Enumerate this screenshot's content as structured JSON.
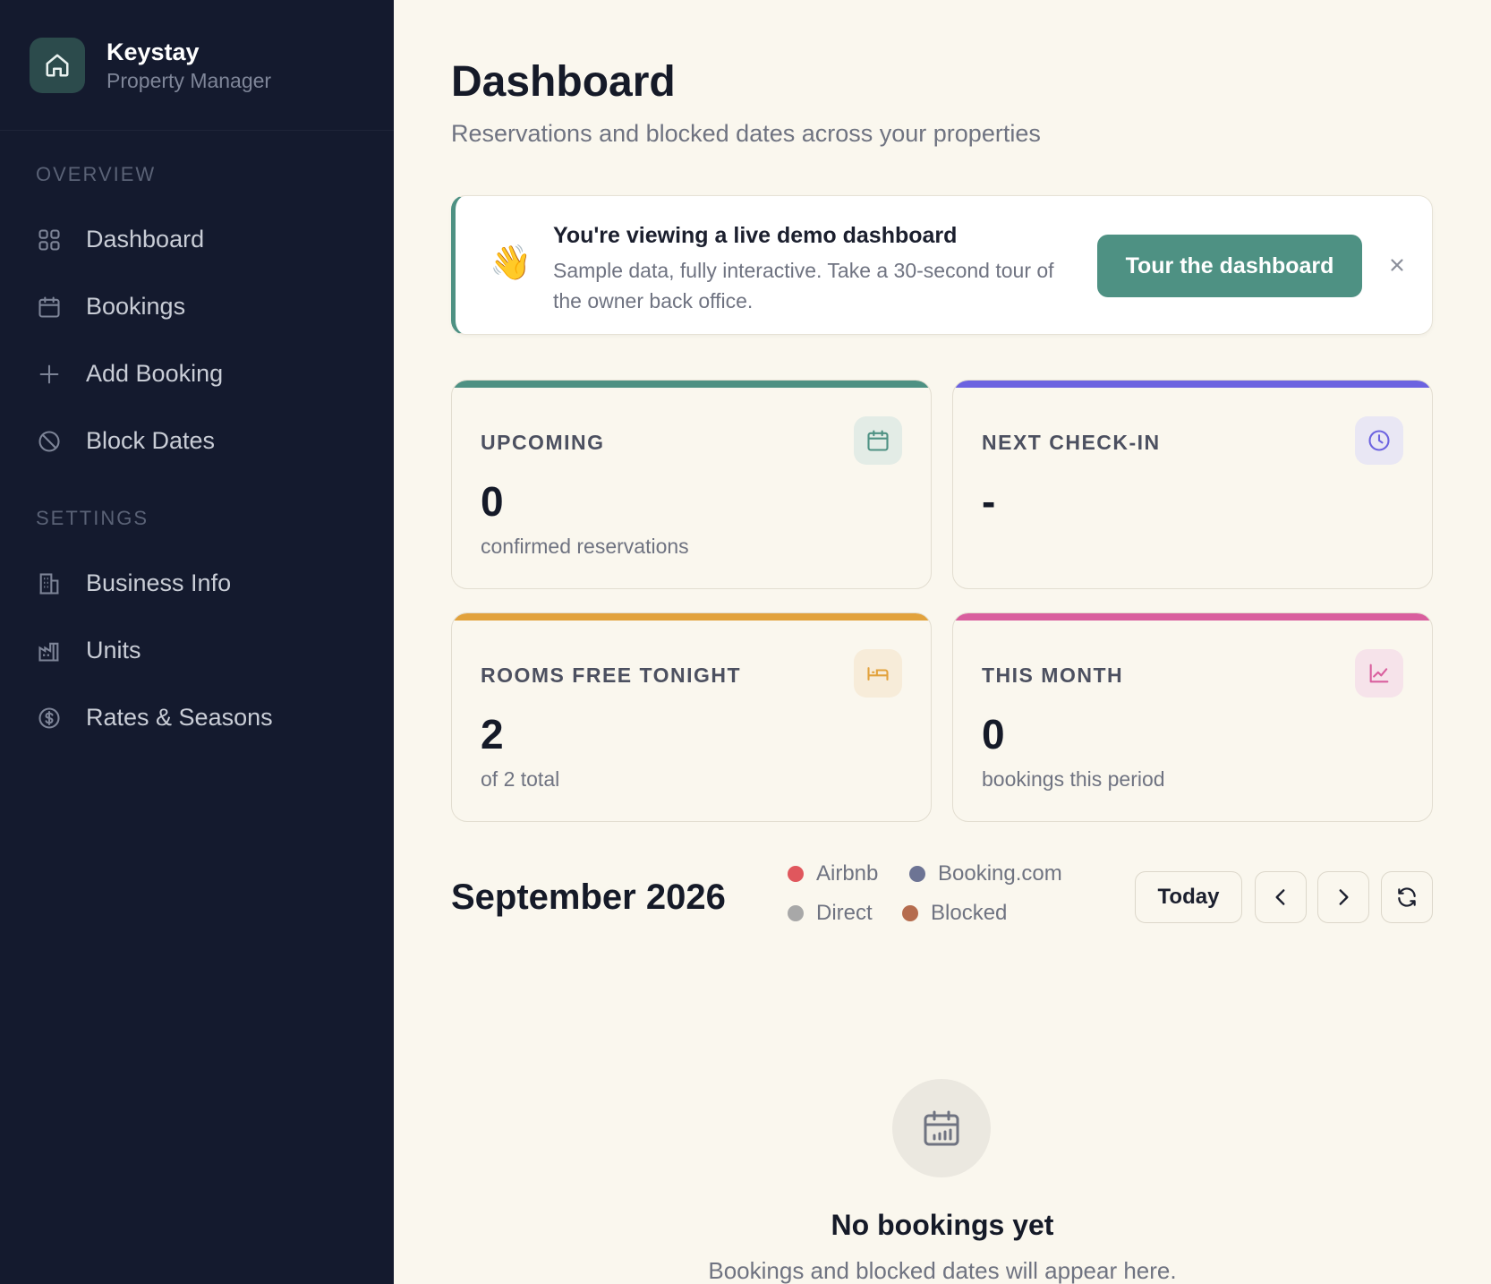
{
  "brand": {
    "name": "Keystay",
    "subtitle": "Property Manager",
    "logo_icon": "home-icon"
  },
  "sidebar": {
    "sections": [
      {
        "label": "OVERVIEW",
        "items": [
          {
            "label": "Dashboard",
            "icon": "grid-icon"
          },
          {
            "label": "Bookings",
            "icon": "calendar-icon"
          },
          {
            "label": "Add Booking",
            "icon": "plus-icon"
          },
          {
            "label": "Block Dates",
            "icon": "ban-icon"
          }
        ]
      },
      {
        "label": "SETTINGS",
        "items": [
          {
            "label": "Business Info",
            "icon": "building-icon"
          },
          {
            "label": "Units",
            "icon": "factory-icon"
          },
          {
            "label": "Rates & Seasons",
            "icon": "dollar-circle-icon"
          }
        ]
      }
    ]
  },
  "header": {
    "title": "Dashboard",
    "subtitle": "Reservations and blocked dates across your properties"
  },
  "banner": {
    "emoji": "👋",
    "title": "You're viewing a live demo dashboard",
    "body": "Sample data, fully interactive. Take a 30-second tour of the owner back office.",
    "button_label": "Tour the dashboard",
    "accent_color": "#4e9183"
  },
  "stats": [
    {
      "label": "UPCOMING",
      "value": "0",
      "note": "confirmed reservations",
      "icon": "calendar-icon",
      "color": "#4e9183"
    },
    {
      "label": "NEXT CHECK-IN",
      "value": "-",
      "note": "",
      "icon": "clock-icon",
      "color": "#6c63e0"
    },
    {
      "label": "ROOMS FREE TONIGHT",
      "value": "2",
      "note": "of 2 total",
      "icon": "bed-icon",
      "color": "#e2a23c"
    },
    {
      "label": "THIS MONTH",
      "value": "0",
      "note": "bookings this period",
      "icon": "chart-line-icon",
      "color": "#d95f9e"
    }
  ],
  "calendar": {
    "month_label": "September 2026",
    "legend": [
      {
        "label": "Airbnb",
        "color": "#e0575d"
      },
      {
        "label": "Booking.com",
        "color": "#6d7494"
      },
      {
        "label": "Direct",
        "color": "#a8a8a8"
      },
      {
        "label": "Blocked",
        "color": "#b56c4e"
      }
    ],
    "today_label": "Today",
    "prev_icon": "chevron-left-icon",
    "next_icon": "chevron-right-icon",
    "refresh_icon": "refresh-icon"
  },
  "empty_state": {
    "icon": "calendar-chart-icon",
    "title": "No bookings yet",
    "subtitle": "Bookings and blocked dates will appear here."
  }
}
